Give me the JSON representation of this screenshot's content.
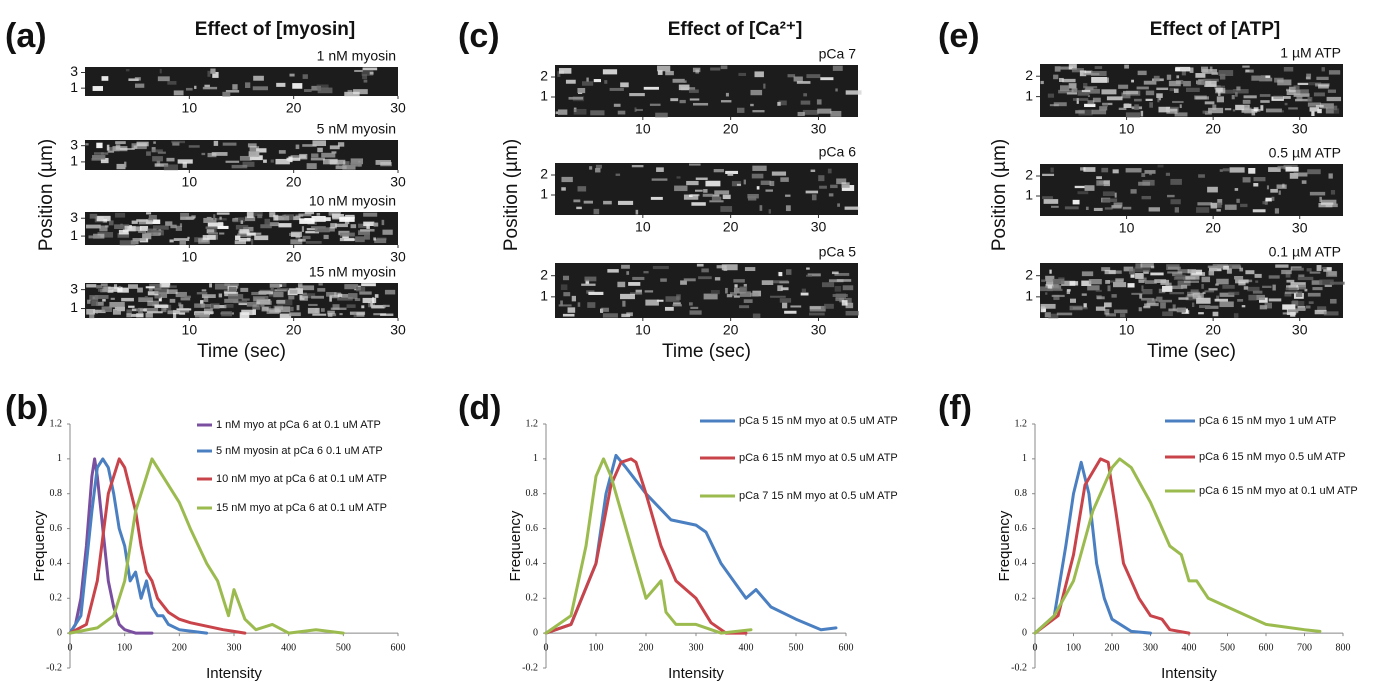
{
  "chart_data": [
    {
      "type": "kymograph",
      "label": "(a)",
      "title": "Effect of [myosin]",
      "xlabel": "Time (sec)",
      "ylabel": "Position  (µm)",
      "xlim": [
        0,
        30
      ],
      "xticks": [
        10,
        20,
        30
      ],
      "ylim": [
        0,
        3.7
      ],
      "yticks": [
        1,
        3
      ],
      "panels": [
        {
          "name": "1 nM myosin"
        },
        {
          "name": "5 nM myosin"
        },
        {
          "name": "10 nM myosin"
        },
        {
          "name": "15 nM myosin"
        }
      ]
    },
    {
      "type": "kymograph",
      "label": "(c)",
      "title": "Effect of [Ca²⁺]",
      "xlabel": "Time (sec)",
      "ylabel": "Position (µm)",
      "xlim": [
        0,
        34.5
      ],
      "xticks": [
        10,
        20,
        30
      ],
      "ylim": [
        0,
        2.6
      ],
      "yticks": [
        1,
        2
      ],
      "panels": [
        {
          "name": "pCa 7"
        },
        {
          "name": "pCa 6"
        },
        {
          "name": "pCa 5"
        }
      ]
    },
    {
      "type": "kymograph",
      "label": "(e)",
      "title": "Effect of [ATP]",
      "xlabel": "Time (sec)",
      "ylabel": "Position (µm)",
      "xlim": [
        0,
        35
      ],
      "xticks": [
        10,
        20,
        30
      ],
      "ylim": [
        0,
        2.6
      ],
      "yticks": [
        1,
        2
      ],
      "panels": [
        {
          "name": "1 µM ATP"
        },
        {
          "name": "0.5 µM ATP"
        },
        {
          "name": "0.1 µM ATP"
        }
      ]
    },
    {
      "type": "line",
      "label": "(b)",
      "xlabel": "Intensity",
      "ylabel": "Frequency",
      "xlim": [
        0,
        600
      ],
      "xticks": [
        0,
        100,
        200,
        300,
        400,
        500,
        600
      ],
      "ylim": [
        -0.2,
        1.2
      ],
      "yticks": [
        -0.2,
        0,
        0.2,
        0.4,
        0.6,
        0.8,
        1,
        1.2
      ],
      "series": [
        {
          "name": "1 nM myo at pCa 6 at 0.1 uM ATP",
          "color": "#7b4fa0",
          "x": [
            0,
            10,
            20,
            30,
            40,
            45,
            50,
            60,
            70,
            80,
            90,
            100,
            120,
            150
          ],
          "values": [
            0,
            0.05,
            0.2,
            0.5,
            0.9,
            1.0,
            0.9,
            0.6,
            0.3,
            0.15,
            0.05,
            0.02,
            0,
            0
          ]
        },
        {
          "name": "5 nM myosin at pCa 6 0.1 uM ATP",
          "color": "#4a7fc1",
          "x": [
            0,
            20,
            40,
            50,
            60,
            70,
            80,
            90,
            100,
            110,
            120,
            130,
            140,
            150,
            160,
            170,
            180,
            200,
            250
          ],
          "values": [
            0,
            0.1,
            0.7,
            0.95,
            1.0,
            0.95,
            0.8,
            0.6,
            0.5,
            0.3,
            0.35,
            0.2,
            0.3,
            0.15,
            0.1,
            0.1,
            0.05,
            0.02,
            0
          ]
        },
        {
          "name": "10 nM myo at pCa 6 at 0.1 uM ATP",
          "color": "#c9444a",
          "x": [
            0,
            30,
            50,
            70,
            90,
            100,
            120,
            130,
            140,
            150,
            160,
            180,
            200,
            220,
            250,
            280,
            300,
            320
          ],
          "values": [
            0,
            0.05,
            0.3,
            0.8,
            1.0,
            0.95,
            0.7,
            0.5,
            0.35,
            0.3,
            0.2,
            0.12,
            0.08,
            0.06,
            0.04,
            0.02,
            0.01,
            0
          ]
        },
        {
          "name": "15 nM myo at pCa 6 at 0.1 uM ATP",
          "color": "#9bbb4f",
          "x": [
            0,
            50,
            80,
            100,
            120,
            150,
            170,
            200,
            220,
            250,
            270,
            290,
            300,
            320,
            340,
            370,
            400,
            450,
            500
          ],
          "values": [
            0,
            0.03,
            0.1,
            0.3,
            0.7,
            1.0,
            0.9,
            0.75,
            0.6,
            0.4,
            0.3,
            0.1,
            0.25,
            0.08,
            0.02,
            0.05,
            0,
            0.02,
            0
          ]
        }
      ]
    },
    {
      "type": "line",
      "label": "(d)",
      "xlabel": "Intensity",
      "ylabel": "Frequency",
      "xlim": [
        0,
        600
      ],
      "xticks": [
        0,
        100,
        200,
        300,
        400,
        500,
        600
      ],
      "ylim": [
        -0.2,
        1.2
      ],
      "yticks": [
        -0.2,
        0,
        0.2,
        0.4,
        0.6,
        0.8,
        1,
        1.2
      ],
      "series": [
        {
          "name": "pCa 5 15 nM myo at 0.5 uM ATP",
          "color": "#4a7fc1",
          "x": [
            0,
            50,
            100,
            120,
            140,
            160,
            200,
            250,
            300,
            320,
            350,
            400,
            420,
            450,
            500,
            550,
            580
          ],
          "values": [
            0,
            0.05,
            0.4,
            0.8,
            1.02,
            0.95,
            0.8,
            0.65,
            0.62,
            0.58,
            0.4,
            0.2,
            0.25,
            0.15,
            0.08,
            0.02,
            0.03
          ]
        },
        {
          "name": "pCa 6 15 nM myo at 0.5 uM ATP",
          "color": "#c9444a",
          "x": [
            0,
            50,
            100,
            130,
            150,
            170,
            180,
            200,
            230,
            260,
            300,
            330,
            360,
            400
          ],
          "values": [
            0,
            0.05,
            0.4,
            0.85,
            0.98,
            1.0,
            0.98,
            0.8,
            0.5,
            0.3,
            0.2,
            0.06,
            0,
            0
          ]
        },
        {
          "name": "pCa 7 15 nM myo at 0.5 uM ATP",
          "color": "#9bbb4f",
          "x": [
            0,
            50,
            80,
            100,
            115,
            130,
            160,
            200,
            230,
            240,
            260,
            300,
            350,
            410
          ],
          "values": [
            0,
            0.1,
            0.5,
            0.9,
            1.0,
            0.9,
            0.6,
            0.2,
            0.3,
            0.12,
            0.05,
            0.05,
            0,
            0.02
          ]
        }
      ]
    },
    {
      "type": "line",
      "label": "(f)",
      "xlabel": "Intensity",
      "ylabel": "Frequency",
      "xlim": [
        0,
        800
      ],
      "xticks": [
        0,
        100,
        200,
        300,
        400,
        500,
        600,
        700,
        800
      ],
      "ylim": [
        -0.2,
        1.2
      ],
      "yticks": [
        -0.2,
        0,
        0.2,
        0.4,
        0.6,
        0.8,
        1,
        1.2
      ],
      "series": [
        {
          "name": "pCa 6 15 nM myo 1 uM ATP",
          "color": "#4a7fc1",
          "x": [
            0,
            50,
            80,
            100,
            120,
            140,
            160,
            180,
            200,
            250,
            300
          ],
          "values": [
            0,
            0.1,
            0.5,
            0.8,
            0.98,
            0.8,
            0.4,
            0.2,
            0.08,
            0.01,
            0
          ]
        },
        {
          "name": "pCa 6 15 nM myo 0.5 uM ATP",
          "color": "#c9444a",
          "x": [
            0,
            60,
            100,
            130,
            170,
            190,
            210,
            230,
            250,
            270,
            300,
            330,
            350,
            400
          ],
          "values": [
            0,
            0.1,
            0.45,
            0.85,
            1.0,
            0.98,
            0.7,
            0.4,
            0.3,
            0.2,
            0.1,
            0.08,
            0.02,
            0
          ]
        },
        {
          "name": "pCa 6 15 nM myo at 0.1 uM ATP",
          "color": "#9bbb4f",
          "x": [
            0,
            50,
            100,
            150,
            200,
            220,
            250,
            300,
            350,
            380,
            400,
            420,
            450,
            500,
            550,
            600,
            700,
            740
          ],
          "values": [
            0,
            0.1,
            0.3,
            0.7,
            0.95,
            1.0,
            0.95,
            0.75,
            0.5,
            0.45,
            0.3,
            0.3,
            0.2,
            0.15,
            0.1,
            0.05,
            0.02,
            0.01
          ]
        }
      ]
    }
  ]
}
